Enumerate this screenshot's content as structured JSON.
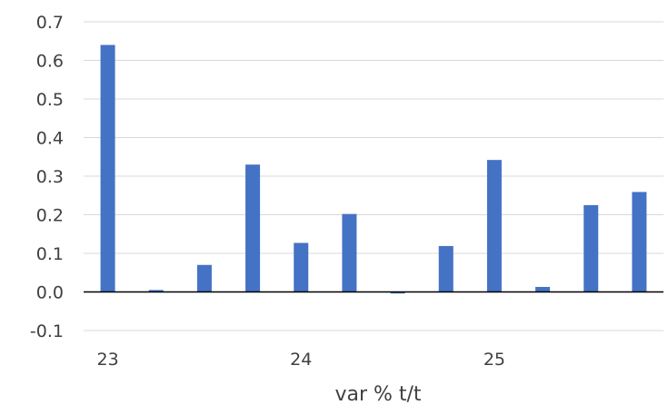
{
  "chart_data": {
    "type": "bar",
    "categories": [
      "23",
      "",
      "",
      "",
      "24",
      "",
      "",
      "",
      "25",
      "",
      "",
      ""
    ],
    "x_tick_labels": [
      "23",
      "24",
      "25"
    ],
    "values": [
      0.64,
      0.005,
      0.07,
      0.33,
      0.127,
      0.202,
      -0.004,
      0.119,
      0.342,
      0.013,
      0.225,
      0.259
    ],
    "ylim": [
      -0.1,
      0.7
    ],
    "y_ticks": [
      "-0.1",
      "0.0",
      "0.1",
      "0.2",
      "0.3",
      "0.4",
      "0.5",
      "0.6",
      "0.7"
    ],
    "xlabel": "var % t/t",
    "ylabel": "",
    "grid": true,
    "legend": "none",
    "bar_color": "#4472C4",
    "grid_color": "#D9D9D9",
    "axis_color": "#000000"
  }
}
